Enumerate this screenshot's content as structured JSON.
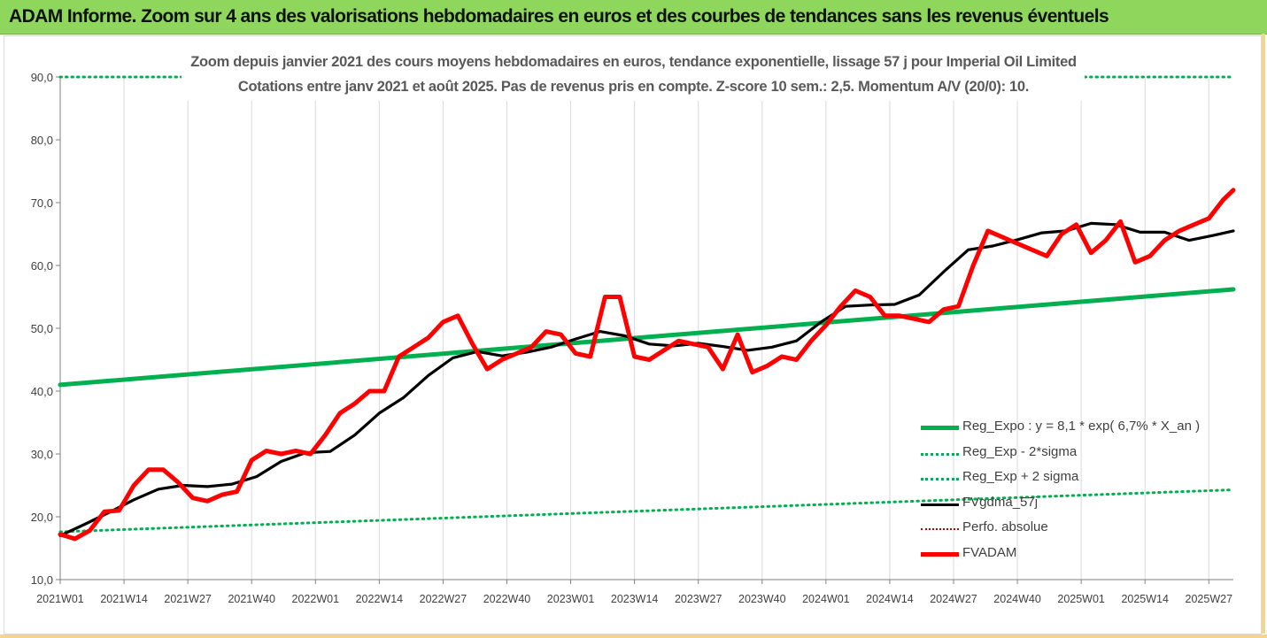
{
  "banner": {
    "title": "ADAM Informe. Zoom sur 4 ans des valorisations hebdomadaires en euros et des courbes de tendances sans les revenus éventuels"
  },
  "chart_data": {
    "type": "line",
    "title": "Zoom depuis janvier 2021 des cours moyens hebdomadaires en euros, tendance exponentielle, lissage 57 j pour Imperial Oil Limited",
    "subtitle": "Cotations entre janv 2021 et août 2025. Pas de revenus pris en compte. Z-score 10 sem.: 2,5. Momentum A/V (20/0): 10.",
    "xlabel": "",
    "ylabel": "",
    "ylim": [
      10,
      90
    ],
    "y_ticks": [
      "10,0",
      "20,0",
      "30,0",
      "40,0",
      "50,0",
      "60,0",
      "70,0",
      "80,0",
      "90,0"
    ],
    "x_tick_labels": [
      "2021W01",
      "2021W14",
      "2021W27",
      "2021W40",
      "2022W01",
      "2022W14",
      "2022W27",
      "2022W40",
      "2023W01",
      "2023W14",
      "2023W27",
      "2023W40",
      "2024W01",
      "2024W14",
      "2024W27",
      "2024W40",
      "2025W01",
      "2025W14",
      "2025W27"
    ],
    "x_range_weeks": [
      0,
      239
    ],
    "grid": "vertical",
    "legend_position": "bottom-right",
    "series": [
      {
        "name": "Reg_Expo : y = 8,1 * exp( 6,7% *  X_an )",
        "color": "#00b050",
        "style": "solid-thick",
        "x": [
          0,
          239
        ],
        "y": [
          41.0,
          56.2
        ]
      },
      {
        "name": "Reg_Exp - 2*sigma",
        "color": "#00b050",
        "style": "dotted",
        "x": [
          0,
          239
        ],
        "y": [
          17.6,
          24.3
        ]
      },
      {
        "name": "Reg_Exp + 2 sigma",
        "color": "#00b050",
        "style": "dotted",
        "x": [
          0,
          239
        ],
        "y": [
          90.0,
          90.0
        ]
      },
      {
        "name": "FVgdma_57j",
        "color": "#000000",
        "style": "solid",
        "x": [
          0,
          5,
          10,
          15,
          20,
          25,
          30,
          35,
          40,
          45,
          50,
          55,
          60,
          65,
          70,
          75,
          80,
          85,
          90,
          95,
          100,
          105,
          110,
          115,
          120,
          125,
          130,
          135,
          140,
          145,
          150,
          155,
          160,
          165,
          170,
          175,
          180,
          185,
          190,
          195,
          200,
          205,
          210,
          215,
          220,
          225,
          230,
          235,
          239
        ],
        "y": [
          17.0,
          18.8,
          20.7,
          22.7,
          24.4,
          25.0,
          24.8,
          25.2,
          26.4,
          28.8,
          30.2,
          30.4,
          33.0,
          36.5,
          39.0,
          42.5,
          45.3,
          46.3,
          45.6,
          46.2,
          47.0,
          48.3,
          49.5,
          48.8,
          47.5,
          47.2,
          47.6,
          47.1,
          46.5,
          47.0,
          48.0,
          51.0,
          53.5,
          53.7,
          53.8,
          55.3,
          59.0,
          62.5,
          63.1,
          64.1,
          65.2,
          65.5,
          66.7,
          66.5,
          65.3,
          65.3,
          64.0,
          64.8,
          65.5
        ]
      },
      {
        "name": "Perfo. absolue",
        "color": "#c00000",
        "style": "dotted",
        "x": [],
        "y": []
      },
      {
        "name": "FVADAM",
        "color": "#ff0000",
        "style": "solid-thick",
        "x": [
          0,
          3,
          6,
          9,
          12,
          15,
          18,
          21,
          24,
          27,
          30,
          33,
          36,
          39,
          42,
          45,
          48,
          51,
          54,
          57,
          60,
          63,
          66,
          69,
          72,
          75,
          78,
          81,
          84,
          87,
          90,
          93,
          96,
          99,
          102,
          105,
          108,
          111,
          114,
          117,
          120,
          123,
          126,
          129,
          132,
          135,
          138,
          141,
          144,
          147,
          150,
          153,
          156,
          159,
          162,
          165,
          168,
          171,
          174,
          177,
          180,
          183,
          186,
          189,
          192,
          195,
          198,
          201,
          204,
          207,
          210,
          213,
          216,
          219,
          222,
          225,
          228,
          231,
          234,
          237,
          239
        ],
        "y": [
          17.2,
          16.5,
          17.8,
          20.8,
          21.0,
          25.0,
          27.5,
          27.5,
          25.5,
          23.0,
          22.5,
          23.5,
          24.0,
          29.0,
          30.5,
          30.0,
          30.5,
          30.0,
          33.0,
          36.5,
          38.0,
          40.0,
          40.0,
          45.5,
          47.0,
          48.5,
          51.0,
          52.0,
          47.5,
          43.5,
          45.0,
          46.0,
          47.0,
          49.5,
          49.0,
          46.0,
          45.5,
          55.0,
          55.0,
          45.5,
          45.0,
          46.5,
          48.0,
          47.5,
          47.0,
          43.5,
          49.0,
          43.0,
          44.0,
          45.5,
          45.0,
          48.0,
          50.5,
          53.5,
          56.0,
          55.0,
          52.0,
          52.0,
          51.5,
          51.0,
          53.0,
          53.5,
          60.0,
          65.5,
          64.5,
          63.5,
          62.5,
          61.5,
          65.0,
          66.5,
          62.0,
          64.0,
          67.0,
          60.5,
          61.5,
          64.0,
          65.5,
          66.5,
          67.5,
          70.5,
          72.0
        ]
      }
    ]
  }
}
